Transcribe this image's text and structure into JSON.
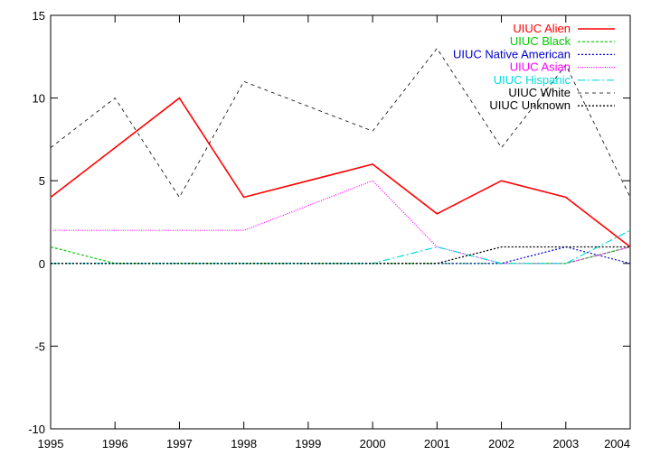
{
  "chart_data": {
    "type": "line",
    "title": "",
    "xlabel": "",
    "ylabel": "",
    "xlim": [
      1995,
      2004
    ],
    "ylim": [
      -10,
      15
    ],
    "grid": false,
    "legend_position": "top-right",
    "x": [
      1995,
      1996,
      1997,
      1998,
      1999,
      2000,
      2001,
      2002,
      2003,
      2004
    ],
    "x_ticks": [
      "1995",
      "1996",
      "1997",
      "1998",
      "1999",
      "2000",
      "2001",
      "2002",
      "2003",
      "2004"
    ],
    "y_ticks": [
      "-10",
      "-5",
      "0",
      "5",
      "10",
      "15"
    ],
    "series": [
      {
        "name": "UIUC Alien",
        "color": "#ff0000",
        "dash": "",
        "width": 1.6,
        "values": [
          4,
          7,
          10,
          4,
          5,
          6,
          3,
          5,
          4,
          1
        ]
      },
      {
        "name": "UIUC Black",
        "color": "#00cc00",
        "dash": "3,2",
        "width": 1.2,
        "values": [
          1,
          0,
          0,
          0,
          0,
          0,
          0,
          0,
          0,
          1
        ]
      },
      {
        "name": "UIUC Native American",
        "color": "#0000cc",
        "dash": "2,2",
        "width": 1.2,
        "values": [
          0,
          0,
          0,
          0,
          0,
          0,
          0,
          0,
          1,
          0
        ]
      },
      {
        "name": "UIUC Asian",
        "color": "#ff00ff",
        "dash": "1,1.5",
        "width": 1.2,
        "values": [
          2,
          2,
          2,
          2,
          3.5,
          5,
          1,
          0,
          0,
          1
        ]
      },
      {
        "name": "UIUC Hispanic",
        "color": "#00dddd",
        "dash": "8,3,2,3",
        "width": 1.2,
        "values": [
          0,
          0,
          0,
          0,
          0,
          0,
          1,
          0,
          0,
          2
        ]
      },
      {
        "name": "UIUC White",
        "color": "#000000",
        "dash": "4,4",
        "width": 0.8,
        "values": [
          7,
          10,
          4,
          11,
          9.5,
          8,
          13,
          7,
          12,
          4
        ]
      },
      {
        "name": "UIUC Unknown",
        "color": "#000000",
        "dash": "2,2",
        "width": 1.3,
        "values": [
          0,
          0,
          0,
          0,
          0,
          0,
          0,
          1,
          1,
          1
        ]
      }
    ]
  }
}
